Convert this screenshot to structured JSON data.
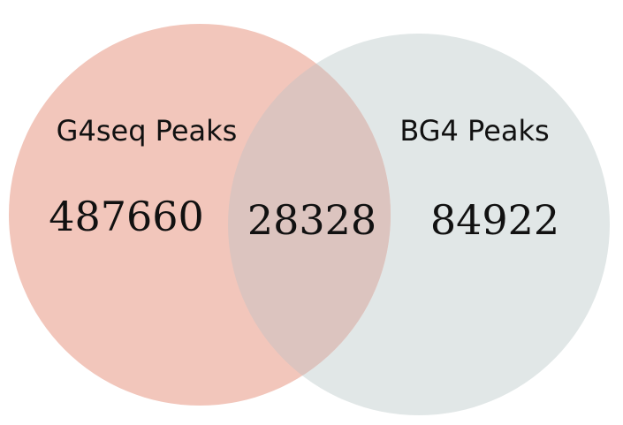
{
  "chart_data": {
    "type": "venn",
    "sets": [
      {
        "label": "G4seq Peaks",
        "only_count": "487660",
        "color": "#f2c6bb"
      },
      {
        "label": "BG4 Peaks",
        "only_count": "84922",
        "color": "#e1e7e7"
      }
    ],
    "intersection": {
      "count": "28328",
      "color": "#dcc4bf"
    }
  }
}
